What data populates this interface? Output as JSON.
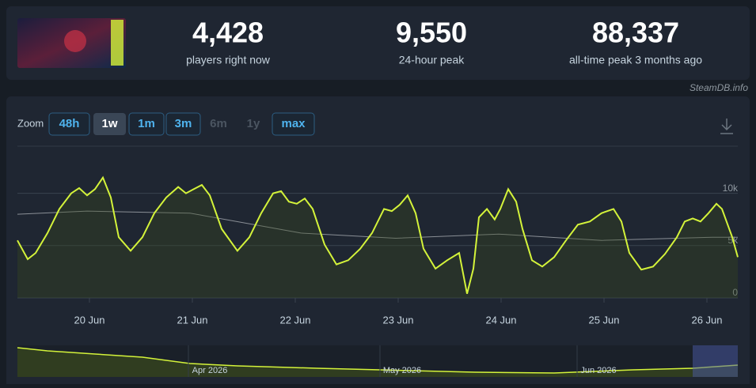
{
  "header": {
    "stats": [
      {
        "value": "4,428",
        "label": "players right now"
      },
      {
        "value": "9,550",
        "label": "24-hour peak"
      },
      {
        "value": "88,337",
        "label": "all-time peak 3 months ago"
      }
    ],
    "credit": "SteamDB.info"
  },
  "zoom": {
    "label": "Zoom",
    "buttons": [
      {
        "label": "48h",
        "state": "enabled"
      },
      {
        "label": "1w",
        "state": "active"
      },
      {
        "label": "1m",
        "state": "enabled"
      },
      {
        "label": "3m",
        "state": "enabled"
      },
      {
        "label": "6m",
        "state": "disabled"
      },
      {
        "label": "1y",
        "state": "disabled"
      },
      {
        "label": "max",
        "state": "enabled"
      }
    ]
  },
  "navigator": {
    "labels": [
      "Apr 2026",
      "May 2026",
      "Jun 2026"
    ]
  },
  "chart_data": {
    "type": "line",
    "xlim": [
      19.3,
      26.3
    ],
    "xticks": [
      {
        "value": 20,
        "label": "20 Jun"
      },
      {
        "value": 21,
        "label": "21 Jun"
      },
      {
        "value": 22,
        "label": "22 Jun"
      },
      {
        "value": 23,
        "label": "23 Jun"
      },
      {
        "value": 24,
        "label": "24 Jun"
      },
      {
        "value": 25,
        "label": "25 Jun"
      },
      {
        "value": 26,
        "label": "26 Jun"
      }
    ],
    "ylim": [
      0,
      14500
    ],
    "yticks": [
      0,
      {
        "value": 5000,
        "label": "5k"
      },
      {
        "value": 10000,
        "label": "10k"
      }
    ],
    "grid": true,
    "series": [
      {
        "color": "#d4f33a",
        "x": [
          19.3,
          19.4,
          19.477,
          19.592,
          19.708,
          19.823,
          19.9,
          19.977,
          20.054,
          20.131,
          20.208,
          20.285,
          20.4,
          20.515,
          20.631,
          20.746,
          20.862,
          20.938,
          21.015,
          21.092,
          21.169,
          21.285,
          21.438,
          21.554,
          21.669,
          21.785,
          21.862,
          21.938,
          22.015,
          22.092,
          22.169,
          22.285,
          22.4,
          22.515,
          22.631,
          22.746,
          22.862,
          22.938,
          23.015,
          23.092,
          23.169,
          23.246,
          23.362,
          23.477,
          23.592,
          23.669,
          23.731,
          23.785,
          23.862,
          23.938,
          23.992,
          24.069,
          24.146,
          24.208,
          24.3,
          24.4,
          24.515,
          24.631,
          24.746,
          24.862,
          24.977,
          25.092,
          25.169,
          25.246,
          25.362,
          25.477,
          25.592,
          25.708,
          25.785,
          25.862,
          25.938,
          26.015,
          26.092,
          26.146,
          26.246,
          26.3
        ],
        "values": [
          5500,
          3700,
          4300,
          6200,
          8500,
          10000,
          10500,
          9800,
          10400,
          11500,
          9600,
          5800,
          4500,
          5800,
          8100,
          9600,
          10600,
          10000,
          10400,
          10800,
          9800,
          6600,
          4500,
          5800,
          8100,
          10000,
          10200,
          9200,
          9000,
          9500,
          8500,
          5100,
          3200,
          3600,
          4700,
          6200,
          8500,
          8300,
          8900,
          9800,
          8100,
          4700,
          2800,
          3600,
          4300,
          400,
          2800,
          7700,
          8500,
          7500,
          8500,
          10400,
          9200,
          6600,
          3600,
          3000,
          3900,
          5500,
          7000,
          7300,
          8100,
          8500,
          7300,
          4300,
          2700,
          3000,
          4200,
          5800,
          7300,
          7600,
          7300,
          8100,
          9000,
          8500,
          5800,
          3900
        ]
      },
      {
        "color": "#8a8f96",
        "x": [
          19.3,
          19.977,
          20.977,
          22.054,
          22.977,
          23.977,
          24.977,
          26.054,
          26.3
        ],
        "values": [
          8000,
          8300,
          8100,
          6200,
          5700,
          6100,
          5500,
          5800,
          5800
        ]
      }
    ]
  }
}
